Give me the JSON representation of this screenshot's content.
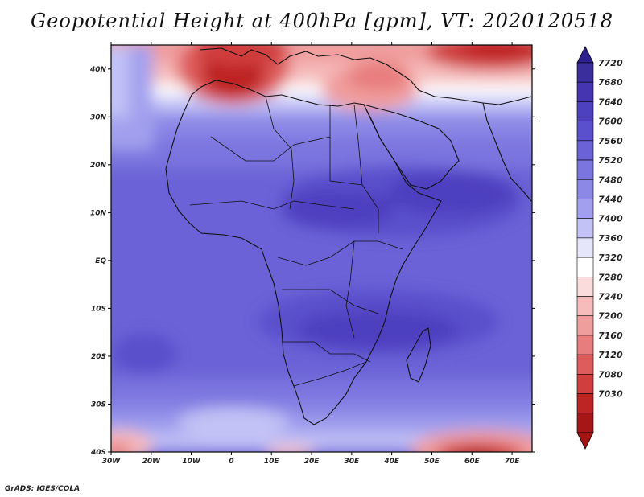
{
  "title": "Geopotential Height at 400hPa [gpm], VT: 2020120518",
  "credit": "GrADS: IGES/COLA",
  "map": {
    "lat_labels": [
      "40N",
      "30N",
      "20N",
      "10N",
      "EQ",
      "10S",
      "20S",
      "30S",
      "40S"
    ],
    "lon_labels": [
      "30W",
      "20W",
      "10W",
      "0",
      "10E",
      "20E",
      "30E",
      "40E",
      "50E",
      "60E",
      "70E"
    ],
    "lon_range": [
      -30,
      75
    ],
    "lat_range": [
      -40,
      45
    ],
    "projection": "lat-lon"
  },
  "colorbar": {
    "levels": [
      "7720",
      "7680",
      "7640",
      "7600",
      "7560",
      "7520",
      "7480",
      "7440",
      "7400",
      "7360",
      "7320",
      "7280",
      "7240",
      "7200",
      "7160",
      "7120",
      "7080",
      "7030"
    ],
    "colors": [
      "#3a2d9c",
      "#4535b0",
      "#4e41c0",
      "#5a4fcc",
      "#6a62d6",
      "#7a75df",
      "#8b88e6",
      "#a2a0ee",
      "#c2c2f6",
      "#e6e6fb",
      "#ffffff",
      "#fbdcdc",
      "#f6bcbc",
      "#f09d9d",
      "#e87d7d",
      "#de5c5c",
      "#d03e3e",
      "#bd2424",
      "#a71616"
    ],
    "top_color": "#2e1f8f",
    "bottom_color": "#a01414"
  },
  "chart_data": {
    "type": "heatmap",
    "title": "Geopotential Height at 400hPa [gpm], VT: 2020120518",
    "variable": "Geopotential Height at 400hPa",
    "units": "gpm",
    "valid_time": "2020120518",
    "lon_range": [
      -30,
      75
    ],
    "lat_range": [
      -40,
      45
    ],
    "x_ticks": [
      "30W",
      "20W",
      "10W",
      "0",
      "10E",
      "20E",
      "30E",
      "40E",
      "50E",
      "60E",
      "70E"
    ],
    "y_ticks": [
      "40N",
      "30N",
      "20N",
      "10N",
      "EQ",
      "10S",
      "20S",
      "30S",
      "40S"
    ],
    "contour_levels": [
      7030,
      7080,
      7120,
      7160,
      7200,
      7240,
      7280,
      7320,
      7360,
      7400,
      7440,
      7480,
      7520,
      7560,
      7600,
      7640,
      7680,
      7720
    ],
    "features": [
      {
        "region": "Western Mediterranean / NW Africa (10W-10E, 33-45N)",
        "value_range": [
          7080,
          7160
        ]
      },
      {
        "region": "Caspian / Iran (55-75E, 40-45N)",
        "value_range": [
          7120,
          7240
        ]
      },
      {
        "region": "Eastern Mediterranean / Middle East (25-45E, 32-40N)",
        "value_range": [
          7240,
          7360
        ]
      },
      {
        "region": "Southern Indian Ocean (50-65E, 40S)",
        "value_range": [
          7030,
          7160
        ]
      },
      {
        "region": "South Atlantic (30W-20W, 38-40S)",
        "value_range": [
          7200,
          7320
        ]
      },
      {
        "region": "Central Africa to Arabian Sea (10N-5S)",
        "value_range": [
          7560,
          7600
        ]
      },
      {
        "region": "Southern Africa / Mozambique Channel (10-25S)",
        "value_range": [
          7560,
          7600
        ]
      },
      {
        "region": "Tropical Atlantic (0-20N)",
        "value_range": [
          7520,
          7560
        ]
      }
    ]
  }
}
